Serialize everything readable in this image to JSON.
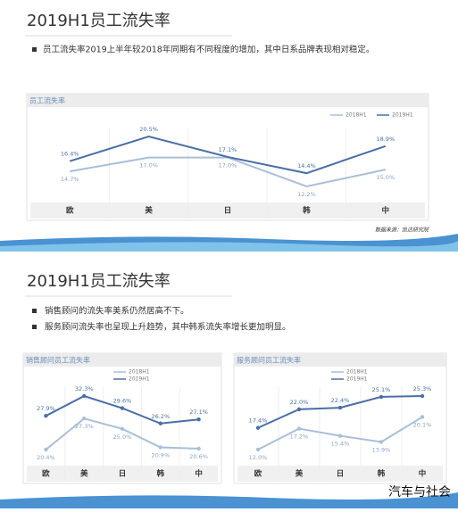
{
  "slides": [
    {
      "title": "2019H1员工流失率",
      "bullets": [
        "员工流失率2019上半年较2018年同期有不同程度的增加，其中日系品牌表现相对稳定。"
      ],
      "source": "数据来源：凯达研究院"
    },
    {
      "title": "2019H1员工流失率",
      "bullets": [
        "销售顾问的流失率美系仍然居高不下。",
        "服务顾问流失率也呈现上升趋势，其中韩系流失率增长更加明显。"
      ]
    }
  ],
  "watermark": "汽车与社会",
  "chart_data": [
    {
      "type": "line",
      "title": "员工流失率",
      "categories": [
        "欧",
        "美",
        "日",
        "韩",
        "中"
      ],
      "legend": "top-right",
      "markers": false,
      "series": [
        {
          "name": "2018H1",
          "color": "#a9bfd8",
          "values": [
            14.7,
            17.0,
            17.0,
            12.2,
            15.0
          ],
          "value_labels": [
            "14.7%",
            "17.0%",
            "17.0%",
            "12.2%",
            "15.0%"
          ]
        },
        {
          "name": "2019H1",
          "color": "#4a6fa5",
          "values": [
            16.4,
            20.5,
            17.1,
            14.4,
            18.9
          ],
          "value_labels": [
            "16.4%",
            "20.5%",
            "17.1%",
            "14.4%",
            "18.9%"
          ]
        }
      ]
    },
    {
      "type": "line",
      "title": "销售顾问员工流失率",
      "categories": [
        "欧",
        "美",
        "日",
        "韩",
        "中"
      ],
      "legend": "top-right",
      "markers": true,
      "series": [
        {
          "name": "2018H1",
          "color": "#a9bfd8",
          "values": [
            20.4,
            27.3,
            25.0,
            20.9,
            20.6
          ],
          "value_labels": [
            "20.4%",
            "27.3%",
            "25.0%",
            "20.9%",
            "20.6%"
          ]
        },
        {
          "name": "2019H1",
          "color": "#4a6fa5",
          "values": [
            27.9,
            32.3,
            29.6,
            26.2,
            27.1
          ],
          "value_labels": [
            "27.9%",
            "32.3%",
            "29.6%",
            "26.2%",
            "27.1%"
          ]
        }
      ]
    },
    {
      "type": "line",
      "title": "服务顾问员工流失率",
      "categories": [
        "欧",
        "美",
        "日",
        "韩",
        "中"
      ],
      "legend": "top-right",
      "markers": true,
      "series": [
        {
          "name": "2018H1",
          "color": "#a9bfd8",
          "values": [
            12.0,
            17.2,
            15.4,
            13.9,
            20.1
          ],
          "value_labels": [
            "12.0%",
            "17.2%",
            "15.4%",
            "13.9%",
            "20.1%"
          ]
        },
        {
          "name": "2019H1",
          "color": "#4a6fa5",
          "values": [
            17.4,
            22.0,
            22.4,
            25.1,
            25.3
          ],
          "value_labels": [
            "17.4%",
            "22.0%",
            "22.4%",
            "25.1%",
            "25.3%"
          ]
        }
      ]
    }
  ]
}
